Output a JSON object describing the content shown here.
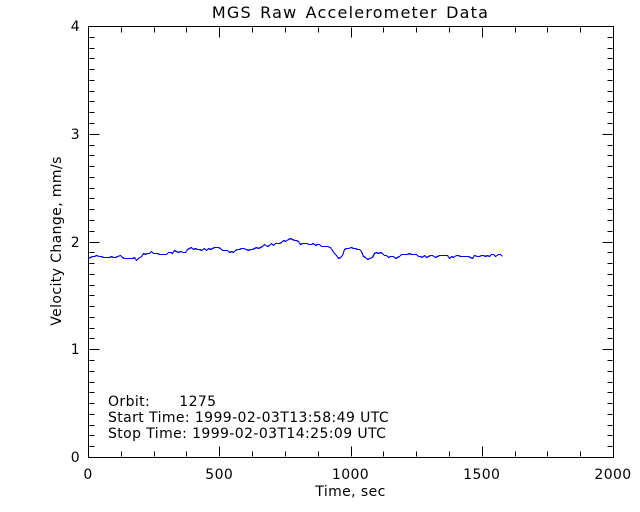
{
  "title": "MGS Raw Accelerometer Data",
  "annotations": {
    "orbit_line": "Orbit:      1275",
    "start_line": "Start Time: 1999-02-03T13:58:49 UTC",
    "stop_line": "Stop Time: 1999-02-03T14:25:09 UTC"
  },
  "chart_data": {
    "type": "line",
    "title": "MGS Raw Accelerometer Data",
    "xlabel": "Time, sec",
    "ylabel": "Velocity Change, mm/s",
    "xlim": [
      0,
      2000
    ],
    "ylim": [
      0,
      4
    ],
    "xticks": [
      0,
      500,
      1000,
      1500,
      2000
    ],
    "yticks": [
      0,
      1,
      2,
      3,
      4
    ],
    "x_minor_interval": 125,
    "y_minor_interval": 0.1,
    "grid": false,
    "legend": false,
    "line_color": "#0000ee",
    "noise_amplitude": 0.011,
    "sample_step_sec": 8,
    "series": [
      {
        "name": "velocity_change",
        "points": [
          [
            0,
            1.855
          ],
          [
            20,
            1.86
          ],
          [
            40,
            1.868
          ],
          [
            60,
            1.858
          ],
          [
            80,
            1.87
          ],
          [
            100,
            1.852
          ],
          [
            120,
            1.862
          ],
          [
            140,
            1.845
          ],
          [
            160,
            1.843
          ],
          [
            175,
            1.858
          ],
          [
            190,
            1.832
          ],
          [
            205,
            1.888
          ],
          [
            225,
            1.895
          ],
          [
            245,
            1.905
          ],
          [
            265,
            1.885
          ],
          [
            285,
            1.893
          ],
          [
            305,
            1.898
          ],
          [
            328,
            1.912
          ],
          [
            350,
            1.903
          ],
          [
            366,
            1.9
          ],
          [
            385,
            1.95
          ],
          [
            405,
            1.937
          ],
          [
            425,
            1.932
          ],
          [
            455,
            1.928
          ],
          [
            481,
            1.94
          ],
          [
            500,
            1.947
          ],
          [
            519,
            1.912
          ],
          [
            538,
            1.903
          ],
          [
            576,
            1.938
          ],
          [
            615,
            1.922
          ],
          [
            653,
            1.95
          ],
          [
            672,
            1.967
          ],
          [
            695,
            1.972
          ],
          [
            710,
            1.98
          ],
          [
            730,
            1.995
          ],
          [
            748,
            2.005
          ],
          [
            762,
            2.03
          ],
          [
            775,
            2.035
          ],
          [
            790,
            2.01
          ],
          [
            805,
            1.99
          ],
          [
            843,
            1.978
          ],
          [
            882,
            1.97
          ],
          [
            920,
            1.952
          ],
          [
            933,
            1.9
          ],
          [
            945,
            1.868
          ],
          [
            958,
            1.85
          ],
          [
            968,
            1.88
          ],
          [
            977,
            1.94
          ],
          [
            996,
            1.948
          ],
          [
            1015,
            1.94
          ],
          [
            1034,
            1.93
          ],
          [
            1053,
            1.85
          ],
          [
            1073,
            1.84
          ],
          [
            1092,
            1.895
          ],
          [
            1111,
            1.91
          ],
          [
            1130,
            1.88
          ],
          [
            1149,
            1.862
          ],
          [
            1168,
            1.85
          ],
          [
            1187,
            1.87
          ],
          [
            1206,
            1.88
          ],
          [
            1225,
            1.898
          ],
          [
            1244,
            1.88
          ],
          [
            1263,
            1.875
          ],
          [
            1282,
            1.86
          ],
          [
            1301,
            1.87
          ],
          [
            1320,
            1.862
          ],
          [
            1340,
            1.87
          ],
          [
            1360,
            1.865
          ],
          [
            1380,
            1.858
          ],
          [
            1400,
            1.87
          ],
          [
            1420,
            1.862
          ],
          [
            1440,
            1.87
          ],
          [
            1460,
            1.856
          ],
          [
            1480,
            1.862
          ],
          [
            1500,
            1.872
          ],
          [
            1520,
            1.868
          ],
          [
            1540,
            1.88
          ],
          [
            1560,
            1.875
          ],
          [
            1576,
            1.872
          ]
        ]
      }
    ]
  }
}
